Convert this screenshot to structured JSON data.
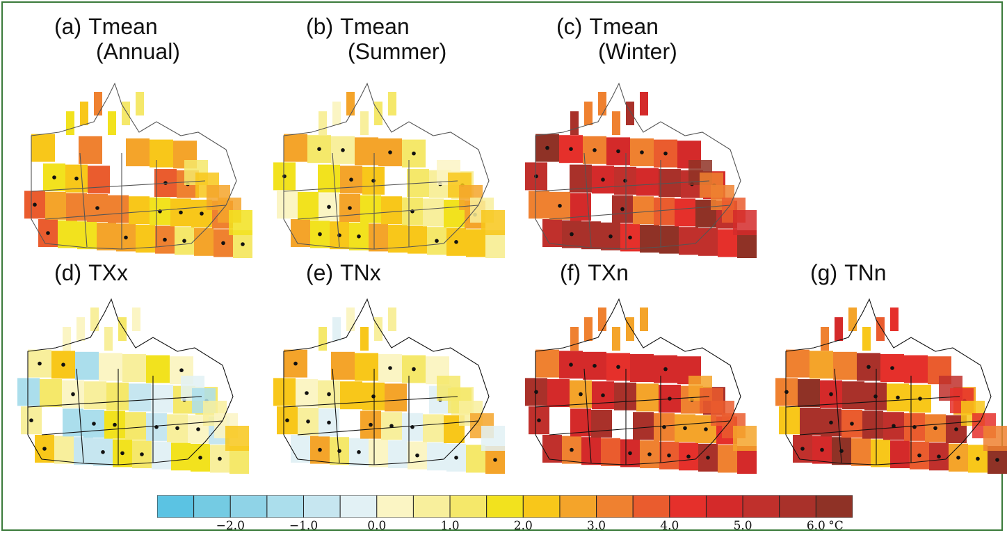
{
  "panels": [
    {
      "tag": "(a)",
      "title": "Tmean",
      "subtitle": "(Annual)"
    },
    {
      "tag": "(b)",
      "title": "Tmean",
      "subtitle": "(Summer)"
    },
    {
      "tag": "(c)",
      "title": "Tmean",
      "subtitle": "(Winter)"
    },
    {
      "tag": "(d)",
      "title": "TXx",
      "subtitle": ""
    },
    {
      "tag": "(e)",
      "title": "TNx",
      "subtitle": ""
    },
    {
      "tag": "(f)",
      "title": "TXn",
      "subtitle": ""
    },
    {
      "tag": "(g)",
      "title": "TNn",
      "subtitle": ""
    }
  ],
  "colorbar": {
    "unit": "°C",
    "colors": [
      "#5bc3e3",
      "#74cbe3",
      "#8fd3e7",
      "#abdeec",
      "#c6e6f0",
      "#e2f1f5",
      "#fbf5c4",
      "#f8ef9c",
      "#f5e86a",
      "#f2e21e",
      "#f8c71a",
      "#f4a42a",
      "#ef8130",
      "#ea5c2e",
      "#e5302b",
      "#d42a2a",
      "#c0302c",
      "#a9312a",
      "#8f3226"
    ],
    "ticks": [
      "−2.0",
      "−1.0",
      "0.0",
      "1.0",
      "2.0",
      "3.0",
      "4.0",
      "5.0",
      "6.0"
    ]
  }
}
